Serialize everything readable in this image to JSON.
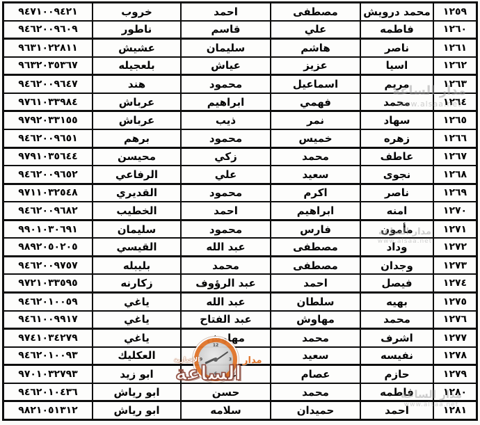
{
  "table": {
    "rows": [
      {
        "cells": [
          "١٢٥٩",
          "محمد درويش",
          "مصطفى",
          "احمد",
          "خروب",
          "٩٤٧١٠٠٩٤٢١"
        ]
      },
      {
        "cells": [
          "١٢٦٠",
          "فاطمه",
          "علي",
          "قاسم",
          "ناطور",
          "٩٤٦٢٠٠٩٦٠٩"
        ]
      },
      {
        "cells": [
          "١٢٦١",
          "ناصر",
          "هاشم",
          "سليمان",
          "عشيش",
          "٩٦٣١٠٢٢٨١١"
        ]
      },
      {
        "cells": [
          "١٢٦٢",
          "اسيا",
          "عزيز",
          "عياش",
          "بلعجيله",
          "٩٦٣٢٠٣٥٣٦٧"
        ]
      },
      {
        "cells": [
          "١٢٦٣",
          "مريم",
          "اسماعيل",
          "محمود",
          "هند",
          "٩٤٦٢٠٠٩٦٤٧"
        ]
      },
      {
        "cells": [
          "١٢٦٤",
          "محمد",
          "فهمي",
          "ابراهيم",
          "عرباش",
          "٩٧٦١٠٣٣٩٨٤"
        ]
      },
      {
        "cells": [
          "١٢٦٥",
          "سهاد",
          "نمر",
          "ذيب",
          "عرباش",
          "٩٧٩٢٠٣٣١٥٥"
        ]
      },
      {
        "cells": [
          "١٢٦٦",
          "زهره",
          "خميس",
          "محمود",
          "برهم",
          "٩٤٦٢٠٠٩٦٥١"
        ]
      },
      {
        "cells": [
          "١٢٦٧",
          "عاطف",
          "محمد",
          "زكي",
          "محيسن",
          "٩٧٩١٠٣٥٦٤٤"
        ]
      },
      {
        "cells": [
          "١٢٦٨",
          "نجوى",
          "سعيد",
          "علي",
          "الرفاعي",
          "٩٤٦٢٠٠٩٦٥٢"
        ]
      },
      {
        "cells": [
          "١٢٦٩",
          "ناصر",
          "اكرم",
          "محمود",
          "القديري",
          "٩٧١١٠٣٢٥٤٨"
        ]
      },
      {
        "cells": [
          "١٢٧٠",
          "امنه",
          "ابراهيم",
          "احمد",
          "الخطيب",
          "٩٤٦٢٠٠٩٦٨٢"
        ]
      },
      {
        "cells": [
          "١٢٧١",
          "مأمون",
          "فارس",
          "محمود",
          "سليمان",
          "٩٩٠١٠٣٠٦٩١"
        ]
      },
      {
        "cells": [
          "١٢٧٢",
          "وداد",
          "مصطفى",
          "عبد الله",
          "القيسي",
          "٩٨٩٢٠٥٠٢٠٥"
        ]
      },
      {
        "cells": [
          "١٢٧٣",
          "وجدان",
          "مصطفى",
          "محمد",
          "بليبله",
          "٩٤٦٢٠٠٩٧٥٧"
        ]
      },
      {
        "cells": [
          "١٢٧٤",
          "فيصل",
          "احمد",
          "عبد الرؤوف",
          "زكارنه",
          "٩٧٢١٠٣٣٥٩٥"
        ]
      },
      {
        "cells": [
          "١٢٧٥",
          "بهيه",
          "سلطان",
          "عبد الله",
          "ياغي",
          "٩٤٦٢٠١٠٠٥٩"
        ]
      },
      {
        "cells": [
          "١٢٧٦",
          "محمد",
          "مهاوش",
          "عبد الفتاح",
          "ياغي",
          "٩٤٦١٠٠٩٩١٧"
        ]
      },
      {
        "cells": [
          "١٢٧٧",
          "اشرف",
          "محمد",
          "مهاوش",
          "ياغي",
          "٩٧٤١٠٣٤٢٧٩"
        ]
      },
      {
        "cells": [
          "١٢٧٨",
          "نفيسه",
          "سعيد",
          "",
          "العكليك",
          "٩٤٦٢٠١٠٠٩٣"
        ]
      },
      {
        "cells": [
          "١٢٧٩",
          "حازم",
          "عصام",
          "علي",
          "ابو زيد",
          "٩٧٠١٠٣٢٧٩٣"
        ]
      },
      {
        "cells": [
          "١٢٨٠",
          "فاطمه",
          "محمد",
          "حسن",
          "ابو رياش",
          "٩٤٦٢٠١٠٤٣٦"
        ]
      },
      {
        "cells": [
          "١٢٨١",
          "احمد",
          "حميدان",
          "سلامه",
          "ابو رياش",
          "٩٨٢١٠٥١٣١٢"
        ]
      }
    ]
  },
  "watermark": {
    "brand": "مدار",
    "badge": "الإخبارية",
    "big_word": "الساعة",
    "faint_line1": "مدار الساعة",
    "faint_line2": "www.alsaa.net",
    "clock_12": "12",
    "clock_3": "3",
    "clock_6": "6",
    "clock_9": "9",
    "accent_orange": "#e0752b",
    "faint_gray": "#9f9f9f"
  }
}
